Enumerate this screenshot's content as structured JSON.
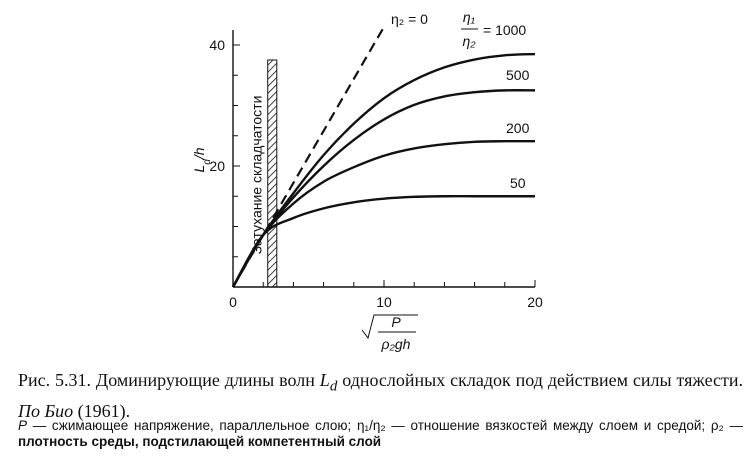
{
  "chart_data": {
    "type": "line",
    "xlim": [
      0,
      20
    ],
    "ylim": [
      0,
      40
    ],
    "x_ticks": [
      "0",
      "10",
      "20"
    ],
    "y_ticks": [
      "20",
      "40"
    ],
    "ylabel": "L_d/h",
    "xlabel": "√(P / ρ₂gh)",
    "shaded_band": {
      "x": [
        2.3,
        2.9
      ],
      "label": "Затухание складчатости"
    },
    "series": [
      {
        "name": "η₂ = 0",
        "dashed": true,
        "x": [
          0,
          2,
          4,
          6,
          8,
          10
        ],
        "y": [
          0,
          8.6,
          17.2,
          25.8,
          34.4,
          43
        ]
      },
      {
        "name": "1000",
        "x": [
          0,
          2,
          4,
          6,
          8,
          10,
          12,
          14,
          16,
          18,
          20
        ],
        "y": [
          0,
          8.6,
          15.5,
          21.8,
          27,
          31.2,
          34.2,
          36.3,
          37.6,
          38.3,
          38.5
        ]
      },
      {
        "name": "500",
        "x": [
          0,
          2,
          4,
          6,
          8,
          10,
          12,
          14,
          16,
          18,
          20
        ],
        "y": [
          0,
          8.6,
          14.8,
          20,
          24.3,
          27.7,
          30.1,
          31.5,
          32.2,
          32.5,
          32.5
        ]
      },
      {
        "name": "200",
        "x": [
          0,
          2,
          4,
          6,
          8,
          10,
          12,
          14,
          16,
          18,
          20
        ],
        "y": [
          0,
          8.6,
          13.8,
          17.4,
          19.8,
          21.7,
          22.9,
          23.6,
          24,
          24.1,
          24.1
        ]
      },
      {
        "name": "50",
        "x": [
          0,
          2,
          4,
          6,
          8,
          10,
          12,
          14,
          16,
          18,
          20
        ],
        "y": [
          0,
          8.6,
          11.4,
          13,
          14,
          14.6,
          14.9,
          15,
          15,
          15,
          15
        ]
      }
    ],
    "label_ratio_num": "η₁",
    "label_ratio_den": "η₂",
    "label_ratio_value": "= 1000",
    "label_eta2": "η₂ = 0"
  },
  "caption": {
    "prefix": "Рис. 5.31. Доминирующие длины волн ",
    "sym": "L",
    "sub": "d",
    "middle": " однослойных складок под действием силы тяжести. ",
    "ref_italic": "По Био",
    "ref_year": " (1961)."
  },
  "note": {
    "p1_sym": "P",
    "p1_text": " — сжимающее напряжение, параллельное слою; η₁/η₂ — отношение вязкостей между слоем и средой; ρ₂ — ",
    "p1_bold": "плотность среды, подстилающей компетентный слой"
  }
}
